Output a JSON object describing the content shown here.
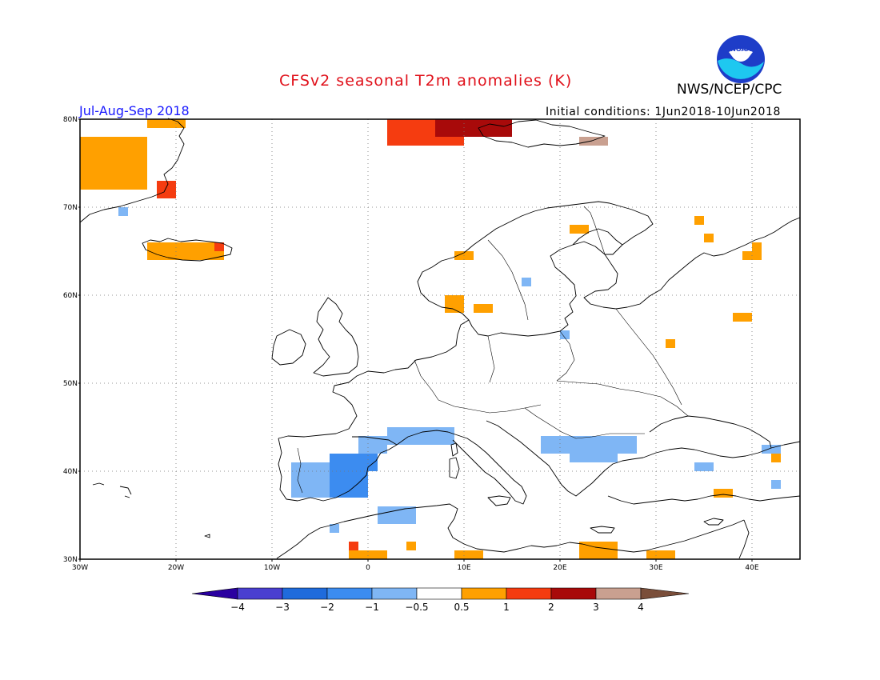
{
  "header": {
    "title": "CFSv2 seasonal T2m anomalies (K)",
    "organization": "NWS/NCEP/CPC",
    "period": "Jul-Aug-Sep 2018",
    "initial_conditions": "Initial conditions: 1Jun2018-10Jun2018",
    "logo_text": "NOAA"
  },
  "map": {
    "region": "Europe",
    "lon_range": [
      -30,
      45
    ],
    "lat_range": [
      30,
      80
    ],
    "gridlines": "dotted",
    "lat_labels": [
      "80N",
      "70N",
      "60N",
      "50N",
      "40N",
      "30N"
    ],
    "lon_labels": [
      "30W",
      "20W",
      "10W",
      "0",
      "10E",
      "20E",
      "30E",
      "40E"
    ],
    "anomaly_cells": [
      {
        "lon": -30,
        "lat": 72,
        "dlon": 7,
        "dlat": 6,
        "value": 0.7
      },
      {
        "lon": -23,
        "lat": 79,
        "dlon": 4,
        "dlat": 1,
        "value": 0.7
      },
      {
        "lon": -22,
        "lat": 71,
        "dlon": 2,
        "dlat": 2,
        "value": 1.5
      },
      {
        "lon": -26,
        "lat": 69,
        "dlon": 1,
        "dlat": 1,
        "value": -0.7
      },
      {
        "lon": -23,
        "lat": 64,
        "dlon": 8,
        "dlat": 2,
        "value": 0.7
      },
      {
        "lon": -16,
        "lat": 65,
        "dlon": 1,
        "dlat": 1,
        "value": 1.5
      },
      {
        "lon": 2,
        "lat": 77,
        "dlon": 8,
        "dlat": 3,
        "value": 1.5
      },
      {
        "lon": 7,
        "lat": 78,
        "dlon": 8,
        "dlat": 2,
        "value": 2.5
      },
      {
        "lon": 22,
        "lat": 77,
        "dlon": 3,
        "dlat": 1,
        "value": 3.5
      },
      {
        "lon": 21,
        "lat": 67,
        "dlon": 2,
        "dlat": 1,
        "value": 0.7
      },
      {
        "lon": 34,
        "lat": 68,
        "dlon": 1,
        "dlat": 1,
        "value": 0.7
      },
      {
        "lon": 35,
        "lat": 66,
        "dlon": 1,
        "dlat": 1,
        "value": 0.7
      },
      {
        "lon": 39,
        "lat": 64,
        "dlon": 1,
        "dlat": 1,
        "value": 0.7
      },
      {
        "lon": 40,
        "lat": 64,
        "dlon": 1,
        "dlat": 2,
        "value": 0.7
      },
      {
        "lon": 38,
        "lat": 57,
        "dlon": 2,
        "dlat": 1,
        "value": 0.7
      },
      {
        "lon": 9,
        "lat": 64,
        "dlon": 2,
        "dlat": 1,
        "value": 0.7
      },
      {
        "lon": 8,
        "lat": 58,
        "dlon": 2,
        "dlat": 2,
        "value": 0.7
      },
      {
        "lon": 11,
        "lat": 58,
        "dlon": 2,
        "dlat": 1,
        "value": 0.7
      },
      {
        "lon": 16,
        "lat": 61,
        "dlon": 1,
        "dlat": 1,
        "value": -0.7
      },
      {
        "lon": 20,
        "lat": 55,
        "dlon": 1,
        "dlat": 1,
        "value": -0.7
      },
      {
        "lon": 31,
        "lat": 54,
        "dlon": 1,
        "dlat": 1,
        "value": 0.7
      },
      {
        "lon": -4,
        "lat": 37,
        "dlon": 4,
        "dlat": 5,
        "value": -1.5
      },
      {
        "lon": -1,
        "lat": 40,
        "dlon": 2,
        "dlat": 2,
        "value": -1.5
      },
      {
        "lon": -8,
        "lat": 37,
        "dlon": 4,
        "dlat": 4,
        "value": -0.7
      },
      {
        "lon": -1,
        "lat": 42,
        "dlon": 3,
        "dlat": 2,
        "value": -0.7
      },
      {
        "lon": 2,
        "lat": 43,
        "dlon": 7,
        "dlat": 2,
        "value": -0.7
      },
      {
        "lon": 1,
        "lat": 34,
        "dlon": 4,
        "dlat": 2,
        "value": -0.7
      },
      {
        "lon": 18,
        "lat": 42,
        "dlon": 10,
        "dlat": 2,
        "value": -0.7
      },
      {
        "lon": 21,
        "lat": 41,
        "dlon": 5,
        "dlat": 1,
        "value": -0.7
      },
      {
        "lon": 34,
        "lat": 40,
        "dlon": 2,
        "dlat": 1,
        "value": -0.7
      },
      {
        "lon": 41,
        "lat": 42,
        "dlon": 2,
        "dlat": 1,
        "value": -0.7
      },
      {
        "lon": 42,
        "lat": 41,
        "dlon": 1,
        "dlat": 1,
        "value": 0.7
      },
      {
        "lon": 36,
        "lat": 37,
        "dlon": 2,
        "dlat": 1,
        "value": 0.7
      },
      {
        "lon": 42,
        "lat": 38,
        "dlon": 1,
        "dlat": 1,
        "value": -0.7
      },
      {
        "lon": -4,
        "lat": 33,
        "dlon": 1,
        "dlat": 1,
        "value": -0.7
      },
      {
        "lon": -2,
        "lat": 30,
        "dlon": 4,
        "dlat": 1,
        "value": 0.7
      },
      {
        "lon": -2,
        "lat": 31,
        "dlon": 1,
        "dlat": 1,
        "value": 1.5
      },
      {
        "lon": 9,
        "lat": 30,
        "dlon": 3,
        "dlat": 1,
        "value": 0.7
      },
      {
        "lon": 22,
        "lat": 30,
        "dlon": 4,
        "dlat": 2,
        "value": 0.7
      },
      {
        "lon": 29,
        "lat": 30,
        "dlon": 3,
        "dlat": 1,
        "value": 0.7
      },
      {
        "lon": 4,
        "lat": 31,
        "dlon": 1,
        "dlat": 1,
        "value": 0.7
      }
    ]
  },
  "legend": {
    "tick_labels": [
      "-4",
      "-3",
      "-2",
      "-1",
      "-0.5",
      "0.5",
      "1",
      "2",
      "3",
      "4"
    ],
    "bins": [
      {
        "min": null,
        "max": -4,
        "color": "#2a00a0"
      },
      {
        "min": -4,
        "max": -3,
        "color": "#4a3fd0"
      },
      {
        "min": -3,
        "max": -2,
        "color": "#1f6bdc"
      },
      {
        "min": -2,
        "max": -1,
        "color": "#3c8cf0"
      },
      {
        "min": -1,
        "max": -0.5,
        "color": "#7fb6f5"
      },
      {
        "min": -0.5,
        "max": 0.5,
        "color": "#ffffff"
      },
      {
        "min": 0.5,
        "max": 1,
        "color": "#ffa000"
      },
      {
        "min": 1,
        "max": 2,
        "color": "#f53c10"
      },
      {
        "min": 2,
        "max": 3,
        "color": "#a80a0a"
      },
      {
        "min": 3,
        "max": 4,
        "color": "#c9a090"
      },
      {
        "min": 4,
        "max": null,
        "color": "#7a4e3a"
      }
    ]
  },
  "colors": {
    "title": "#e0101a",
    "period": "#1a1aff",
    "noaa_logo_blue": "#1e3dc8",
    "noaa_logo_cyan": "#1ec8f0"
  }
}
